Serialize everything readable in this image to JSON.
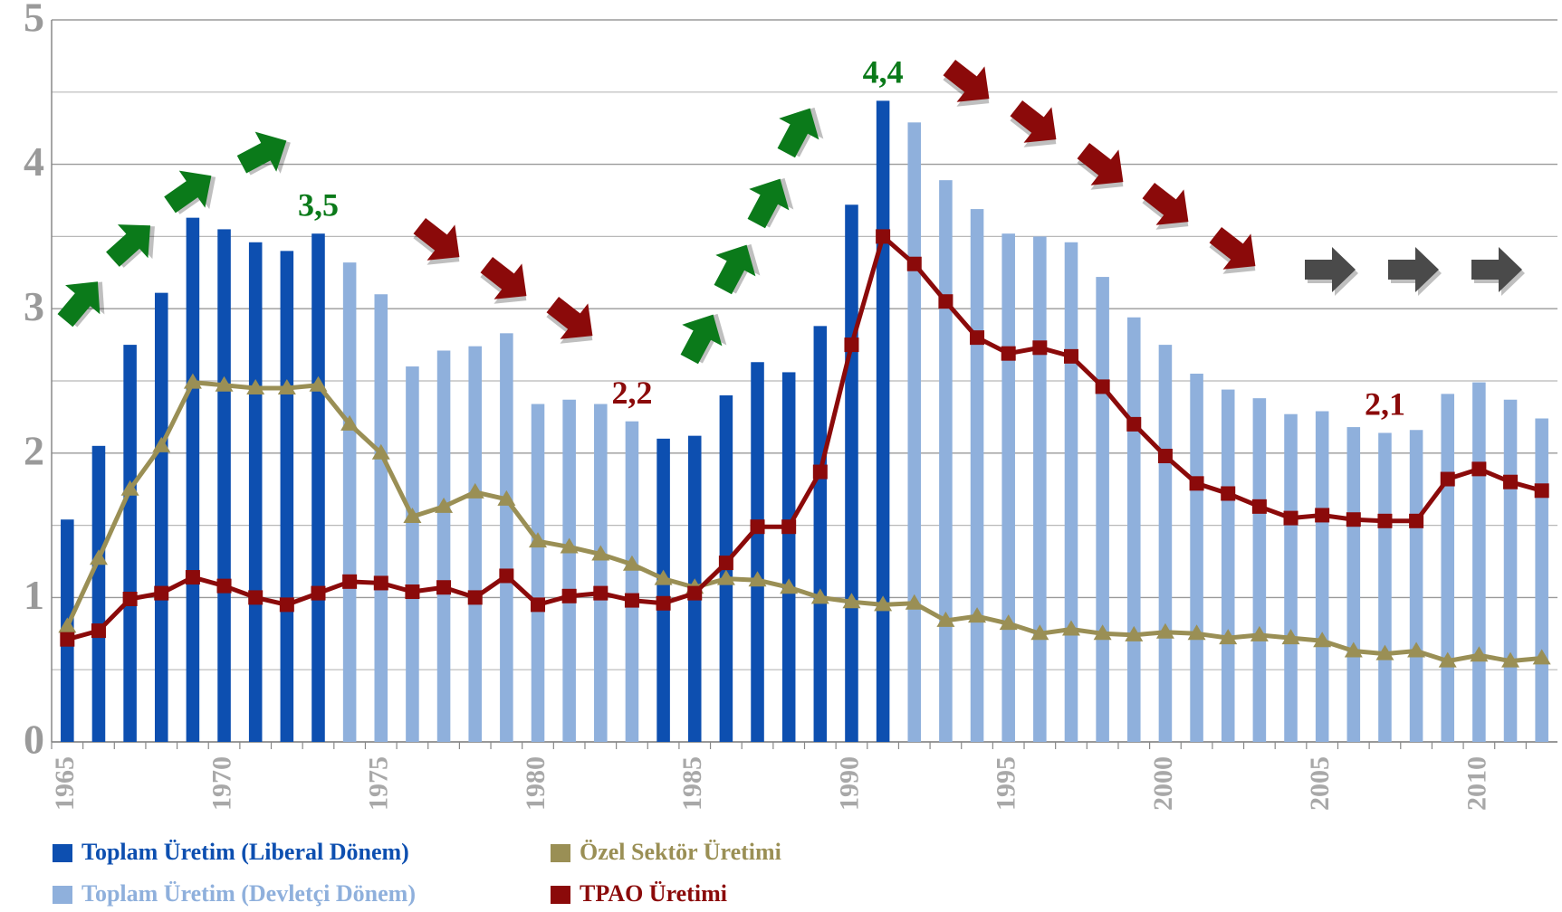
{
  "chart_data": {
    "type": "bar_line",
    "categories": [
      "1965",
      null,
      null,
      null,
      null,
      "1970",
      null,
      null,
      null,
      null,
      "1975",
      null,
      null,
      null,
      null,
      "1980",
      null,
      null,
      null,
      null,
      "1985",
      null,
      null,
      null,
      null,
      "1990",
      null,
      null,
      null,
      null,
      "1995",
      null,
      null,
      null,
      null,
      "2000",
      null,
      null,
      null,
      null,
      "2005",
      null,
      null,
      null,
      null,
      "2010",
      null,
      null
    ],
    "ylim": [
      0,
      5
    ],
    "yticks": [
      0,
      1,
      2,
      3,
      4,
      5
    ],
    "yminor": [
      0.5,
      1.5,
      2.5,
      3.5,
      4.5
    ],
    "grid": true,
    "series": [
      {
        "name": "Toplam Üretim (Liberal Dönem)",
        "kind": "bar",
        "color": "#0d4fb0",
        "label_color": "#0b7a1a",
        "values": [
          1.54,
          2.05,
          2.75,
          3.11,
          3.63,
          3.55,
          3.46,
          3.4,
          3.52,
          null,
          null,
          null,
          null,
          null,
          null,
          null,
          null,
          null,
          null,
          2.1,
          2.12,
          2.4,
          2.63,
          2.56,
          2.88,
          3.72,
          4.44,
          null,
          null,
          null,
          null,
          null,
          null,
          null,
          null,
          null,
          null,
          null,
          null,
          null,
          null,
          null,
          null,
          null,
          null,
          null,
          null,
          null
        ],
        "value_labels": [
          null,
          null,
          null,
          null,
          null,
          null,
          null,
          null,
          "3,5",
          null,
          null,
          null,
          null,
          null,
          null,
          null,
          null,
          null,
          null,
          null,
          null,
          null,
          null,
          null,
          null,
          null,
          "4,4",
          null,
          null,
          null,
          null,
          null,
          null,
          null,
          null,
          null,
          null,
          null,
          null,
          null,
          null,
          null,
          null,
          null,
          null,
          null,
          null,
          null
        ]
      },
      {
        "name": "Toplam Üretim (Devletçi Dönem)",
        "kind": "bar",
        "color": "#8fb0dc",
        "label_color": "#8b0a0a",
        "values": [
          null,
          null,
          null,
          null,
          null,
          null,
          null,
          null,
          null,
          3.32,
          3.1,
          2.6,
          2.71,
          2.74,
          2.83,
          2.34,
          2.37,
          2.34,
          2.22,
          null,
          null,
          null,
          null,
          null,
          null,
          null,
          null,
          4.29,
          3.89,
          3.69,
          3.52,
          3.5,
          3.46,
          3.22,
          2.94,
          2.75,
          2.55,
          2.44,
          2.38,
          2.27,
          2.29,
          2.18,
          2.14,
          2.16,
          2.41,
          2.49,
          2.37,
          2.24
        ],
        "value_labels": [
          null,
          null,
          null,
          null,
          null,
          null,
          null,
          null,
          null,
          null,
          null,
          null,
          null,
          null,
          null,
          null,
          null,
          null,
          "2,2",
          null,
          null,
          null,
          null,
          null,
          null,
          null,
          null,
          null,
          null,
          null,
          null,
          null,
          null,
          null,
          null,
          null,
          null,
          null,
          null,
          null,
          null,
          null,
          "2,1",
          null,
          null,
          null,
          null,
          null
        ]
      },
      {
        "name": "Özel Sektör Üretimi",
        "kind": "line",
        "marker": "triangle",
        "color": "#9a8f55",
        "values": [
          0.8,
          1.27,
          1.75,
          2.05,
          2.49,
          2.47,
          2.45,
          2.45,
          2.47,
          2.2,
          2.0,
          1.56,
          1.63,
          1.73,
          1.68,
          1.39,
          1.35,
          1.3,
          1.23,
          1.13,
          1.07,
          1.13,
          1.12,
          1.07,
          1.0,
          0.97,
          0.95,
          0.96,
          0.84,
          0.87,
          0.82,
          0.75,
          0.78,
          0.75,
          0.74,
          0.76,
          0.75,
          0.72,
          0.74,
          0.72,
          0.7,
          0.63,
          0.61,
          0.63,
          0.56,
          0.6,
          0.56,
          0.58
        ]
      },
      {
        "name": "TPAO Üretimi",
        "kind": "line",
        "marker": "square",
        "color": "#8b0a0a",
        "values": [
          0.71,
          0.77,
          0.99,
          1.03,
          1.14,
          1.08,
          1.0,
          0.95,
          1.03,
          1.11,
          1.1,
          1.04,
          1.07,
          1.0,
          1.15,
          0.95,
          1.01,
          1.03,
          0.98,
          0.96,
          1.03,
          1.24,
          1.49,
          1.49,
          1.87,
          2.75,
          3.5,
          3.31,
          3.05,
          2.8,
          2.69,
          2.73,
          2.67,
          2.46,
          2.2,
          1.98,
          1.79,
          1.72,
          1.63,
          1.55,
          1.57,
          1.54,
          1.53,
          1.53,
          1.82,
          1.89,
          1.8,
          1.74
        ]
      }
    ]
  }
}
